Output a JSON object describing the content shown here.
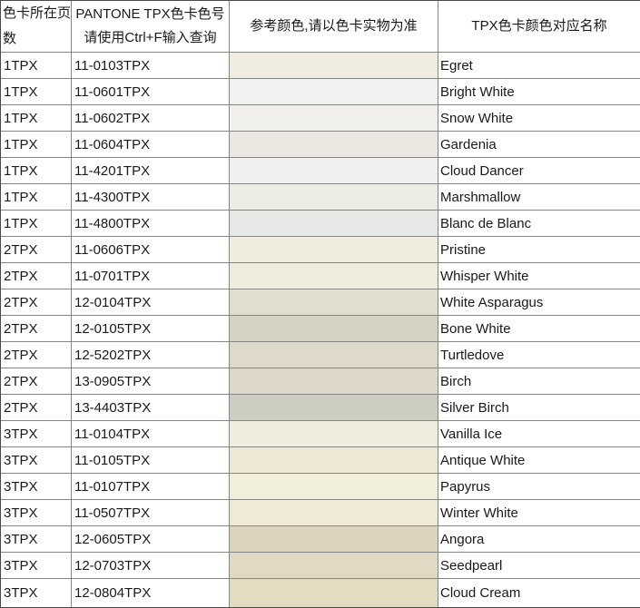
{
  "table": {
    "headers": {
      "page_col_line1": "色卡所在页",
      "page_col_line2": "数",
      "code_col_line1": "PANTONE TPX色卡色号",
      "code_col_line2": "请使用Ctrl+F输入查询",
      "swatch_col": "参考颜色,请以色卡实物为准",
      "name_col": "TPX色卡颜色对应名称"
    },
    "rows": [
      {
        "page": "1TPX",
        "code": "11-0103TPX",
        "swatch": "#F0EDE0",
        "name": "Egret"
      },
      {
        "page": "1TPX",
        "code": "11-0601TPX",
        "swatch": "#F1F1F0",
        "name": "Bright White"
      },
      {
        "page": "1TPX",
        "code": "11-0602TPX",
        "swatch": "#F0EFE9",
        "name": "Snow White"
      },
      {
        "page": "1TPX",
        "code": "11-0604TPX",
        "swatch": "#ECE7E0",
        "name": "Gardenia"
      },
      {
        "page": "1TPX",
        "code": "11-4201TPX",
        "swatch": "#F0F0EF",
        "name": "Cloud Dancer"
      },
      {
        "page": "1TPX",
        "code": "11-4300TPX",
        "swatch": "#EDECE3",
        "name": "Marshmallow"
      },
      {
        "page": "1TPX",
        "code": "11-4800TPX",
        "swatch": "#E8E8E6",
        "name": "Blanc de Blanc"
      },
      {
        "page": "2TPX",
        "code": "11-0606TPX",
        "swatch": "#F0EDDF",
        "name": "Pristine"
      },
      {
        "page": "2TPX",
        "code": "11-0701TPX",
        "swatch": "#EFECDE",
        "name": "Whisper White"
      },
      {
        "page": "2TPX",
        "code": "12-0104TPX",
        "swatch": "#E1DFCE",
        "name": "White Asparagus"
      },
      {
        "page": "2TPX",
        "code": "12-0105TPX",
        "swatch": "#D5D3C1",
        "name": "Bone White"
      },
      {
        "page": "2TPX",
        "code": "12-5202TPX",
        "swatch": "#DFD9CA",
        "name": "Turtledove"
      },
      {
        "page": "2TPX",
        "code": "13-0905TPX",
        "swatch": "#DED8C9",
        "name": "Birch"
      },
      {
        "page": "2TPX",
        "code": "13-4403TPX",
        "swatch": "#CCCEC2",
        "name": "Silver Birch"
      },
      {
        "page": "3TPX",
        "code": "11-0104TPX",
        "swatch": "#EFEEDE",
        "name": "Vanilla Ice"
      },
      {
        "page": "3TPX",
        "code": "11-0105TPX",
        "swatch": "#EFE8D7",
        "name": "Antique White"
      },
      {
        "page": "3TPX",
        "code": "11-0107TPX",
        "swatch": "#F1EEDC",
        "name": "Papyrus"
      },
      {
        "page": "3TPX",
        "code": "11-0507TPX",
        "swatch": "#F0E9D6",
        "name": "Winter White"
      },
      {
        "page": "3TPX",
        "code": "12-0605TPX",
        "swatch": "#DCD2BE",
        "name": "Angora"
      },
      {
        "page": "3TPX",
        "code": "12-0703TPX",
        "swatch": "#E1D9C3",
        "name": "Seedpearl"
      },
      {
        "page": "3TPX",
        "code": "12-0804TPX",
        "swatch": "#E3DCC2",
        "name": "Cloud Cream"
      }
    ]
  }
}
